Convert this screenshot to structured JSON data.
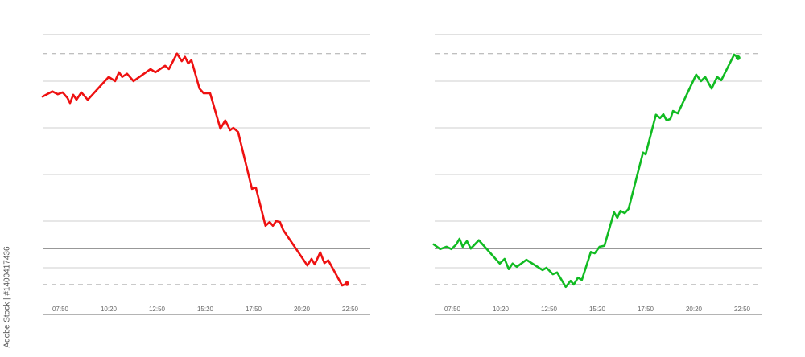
{
  "watermark": "Adobe Stock | #1400417436",
  "chart_data": [
    {
      "type": "line",
      "color": "#ee1111",
      "x_ticks": [
        "07:50",
        "10:20",
        "12:50",
        "15:20",
        "17:50",
        "20:20",
        "22:50"
      ],
      "ylim": [
        0,
        6.74
      ],
      "grid_y": [
        1,
        2,
        3,
        4,
        5,
        6
      ],
      "dashed_lines": [
        5.59,
        0.64
      ],
      "baseline": 1.41,
      "x": [
        "06:55",
        "07:25",
        "07:42",
        "07:57",
        "08:12",
        "08:20",
        "08:30",
        "08:40",
        "08:55",
        "09:15",
        "10:20",
        "10:40",
        "10:52",
        "11:02",
        "11:17",
        "11:37",
        "12:30",
        "12:45",
        "13:15",
        "13:27",
        "13:52",
        "14:07",
        "14:17",
        "14:27",
        "14:37",
        "15:02",
        "15:15",
        "15:35",
        "16:07",
        "16:22",
        "16:37",
        "16:47",
        "17:02",
        "17:45",
        "17:57",
        "18:27",
        "18:40",
        "18:50",
        "19:00",
        "19:12",
        "19:22",
        "20:37",
        "20:50",
        "21:00",
        "21:17",
        "21:30",
        "21:42",
        "22:25",
        "22:40"
      ],
      "y": [
        4.67,
        4.78,
        4.72,
        4.76,
        4.64,
        4.53,
        4.71,
        4.6,
        4.76,
        4.6,
        5.09,
        5.0,
        5.19,
        5.09,
        5.16,
        5.0,
        5.26,
        5.19,
        5.33,
        5.26,
        5.59,
        5.43,
        5.52,
        5.38,
        5.45,
        4.84,
        4.74,
        4.74,
        3.98,
        4.16,
        3.95,
        4.0,
        3.91,
        2.69,
        2.72,
        1.9,
        1.98,
        1.9,
        2.0,
        1.98,
        1.81,
        1.05,
        1.19,
        1.07,
        1.33,
        1.1,
        1.16,
        0.62,
        0.66
      ]
    },
    {
      "type": "line",
      "color": "#11bb22",
      "x_ticks": [
        "07:50",
        "10:20",
        "12:50",
        "15:20",
        "17:50",
        "20:20",
        "22:50"
      ],
      "ylim": [
        0,
        6.74
      ],
      "grid_y": [
        1,
        2,
        3,
        4,
        5,
        6
      ],
      "dashed_lines": [
        5.59,
        0.64
      ],
      "baseline": 1.41,
      "x": [
        "06:52",
        "07:12",
        "07:32",
        "07:47",
        "08:02",
        "08:12",
        "08:22",
        "08:35",
        "08:47",
        "09:12",
        "10:17",
        "10:32",
        "10:45",
        "10:57",
        "11:10",
        "11:40",
        "12:30",
        "12:42",
        "13:02",
        "13:15",
        "13:42",
        "13:57",
        "14:07",
        "14:20",
        "14:32",
        "15:00",
        "15:12",
        "15:27",
        "15:42",
        "16:12",
        "16:22",
        "16:32",
        "16:45",
        "16:57",
        "17:42",
        "17:50",
        "18:22",
        "18:35",
        "18:45",
        "18:55",
        "19:07",
        "19:15",
        "19:30",
        "20:27",
        "20:42",
        "20:55",
        "21:15",
        "21:32",
        "21:45",
        "22:25",
        "22:37"
      ],
      "y": [
        1.5,
        1.4,
        1.45,
        1.4,
        1.5,
        1.62,
        1.45,
        1.57,
        1.41,
        1.59,
        1.09,
        1.19,
        0.97,
        1.09,
        1.02,
        1.17,
        0.95,
        1.0,
        0.86,
        0.9,
        0.59,
        0.72,
        0.64,
        0.79,
        0.74,
        1.34,
        1.31,
        1.45,
        1.47,
        2.19,
        2.07,
        2.22,
        2.17,
        2.26,
        3.47,
        3.43,
        4.28,
        4.21,
        4.29,
        4.16,
        4.19,
        4.36,
        4.31,
        5.14,
        5.0,
        5.09,
        4.84,
        5.09,
        5.02,
        5.57,
        5.5
      ]
    }
  ]
}
